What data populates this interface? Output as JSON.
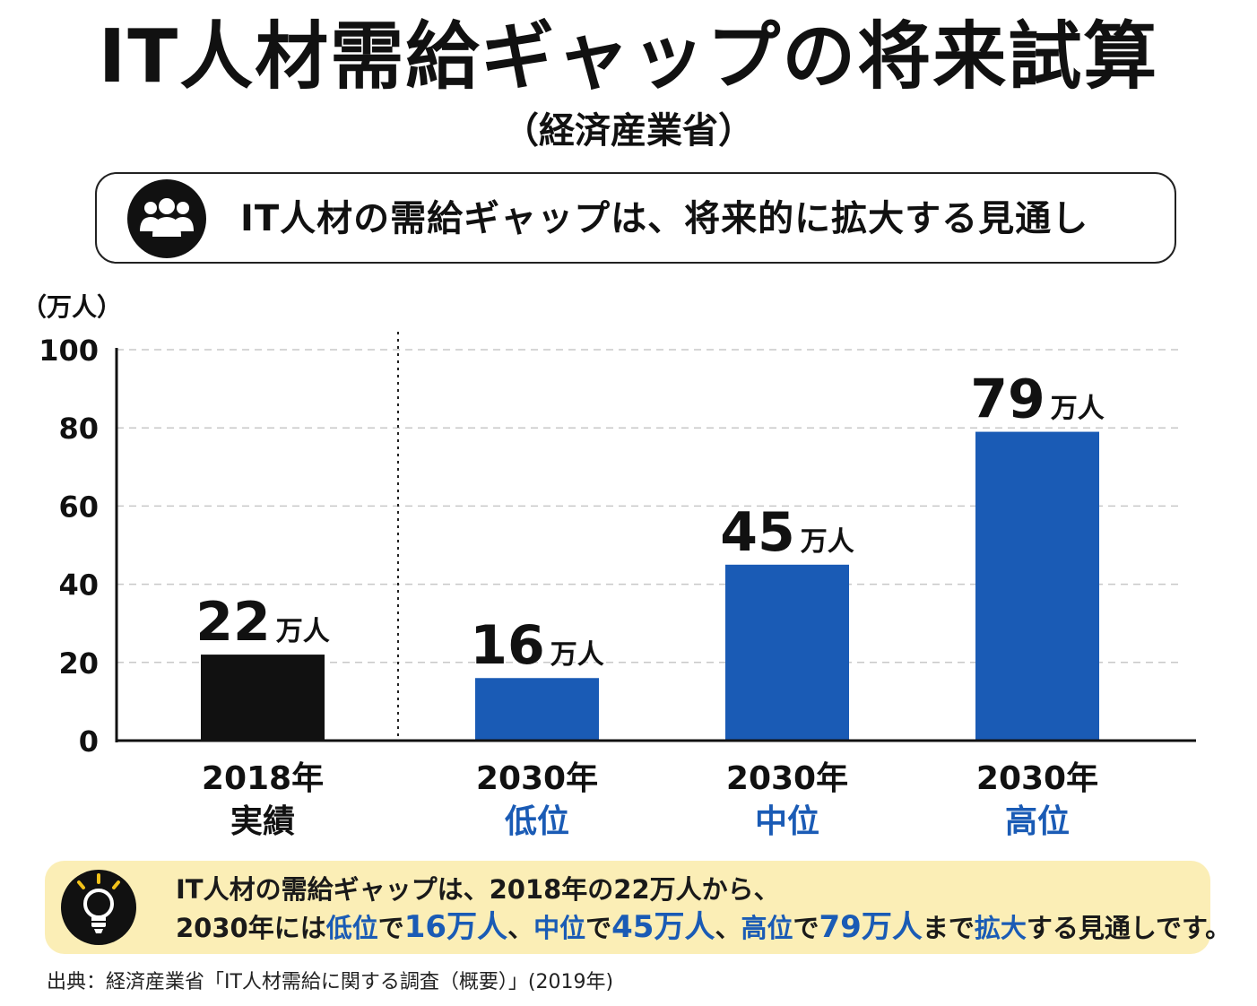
{
  "title": "IT人材需給ギャップの将来試算",
  "subtitle": "（経済産業省）",
  "headline": {
    "text": "IT人材の需給ギャップは、将来的に拡大する見通し",
    "icon": "people-group-icon"
  },
  "chart_data": {
    "type": "bar",
    "y_unit_label": "（万人）",
    "ylim": [
      0,
      100
    ],
    "yticks": [
      0,
      20,
      40,
      60,
      80,
      100
    ],
    "grid": true,
    "value_unit": "万人",
    "categories": [
      {
        "year": "2018年",
        "label": "実績",
        "value": 22,
        "color": "#111111",
        "label_color": "#111111"
      },
      {
        "year": "2030年",
        "label": "低位",
        "value": 16,
        "color": "#1a5bb5",
        "label_color": "#1a5bb5"
      },
      {
        "year": "2030年",
        "label": "中位",
        "value": 45,
        "color": "#1a5bb5",
        "label_color": "#1a5bb5"
      },
      {
        "year": "2030年",
        "label": "高位",
        "value": 79,
        "color": "#1a5bb5",
        "label_color": "#1a5bb5"
      }
    ]
  },
  "summary": {
    "icon": "lightbulb-icon",
    "line1": "IT人材の需給ギャップは、2018年の22万人から、",
    "line2": {
      "p1": "2030年には",
      "k1": "低位",
      "p2": "で",
      "v1": "16万人",
      "p3": "、",
      "k2": "中位",
      "p4": "で",
      "v2": "45万人",
      "p5": "、",
      "k3": "高位",
      "p6": "で",
      "v3": "79万人",
      "p7": "まで",
      "k4": "拡大",
      "p8": "する見通しです。"
    }
  },
  "source": "出典：経済産業省「IT人材需給に関する調査（概要）」(2019年)",
  "colors": {
    "accent_blue": "#1a5bb5",
    "actual_black": "#111111",
    "summary_bg": "#fbeeb6"
  }
}
